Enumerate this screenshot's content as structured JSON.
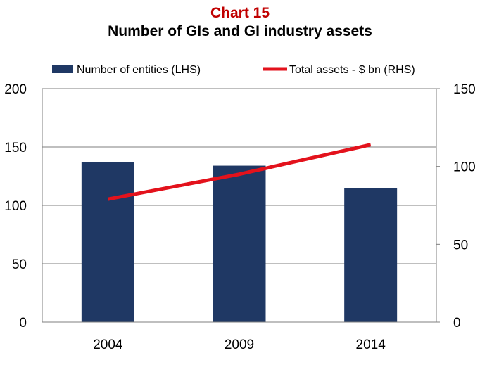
{
  "chart_number": "Chart 15",
  "title": "Number of GIs and GI industry assets",
  "colors": {
    "bar": "#1f3864",
    "line": "#e3121c",
    "chart_number": "#c00000",
    "grid": "#7f7f7f"
  },
  "chart_data": {
    "type": "bar",
    "categories": [
      "2004",
      "2009",
      "2014"
    ],
    "series": [
      {
        "name": "Number of entities (LHS)",
        "type": "bar",
        "axis": "left",
        "values": [
          137,
          134,
          115
        ]
      },
      {
        "name": "Total assets - $ bn (RHS)",
        "type": "line",
        "axis": "right",
        "values": [
          79,
          95,
          114
        ]
      }
    ],
    "y_left": {
      "min": 0,
      "max": 200,
      "ticks": [
        "0",
        "50",
        "100",
        "150",
        "200"
      ]
    },
    "y_right": {
      "min": 0,
      "max": 150,
      "ticks": [
        "0",
        "50",
        "100",
        "150"
      ]
    },
    "grid": true,
    "legend": "top"
  }
}
